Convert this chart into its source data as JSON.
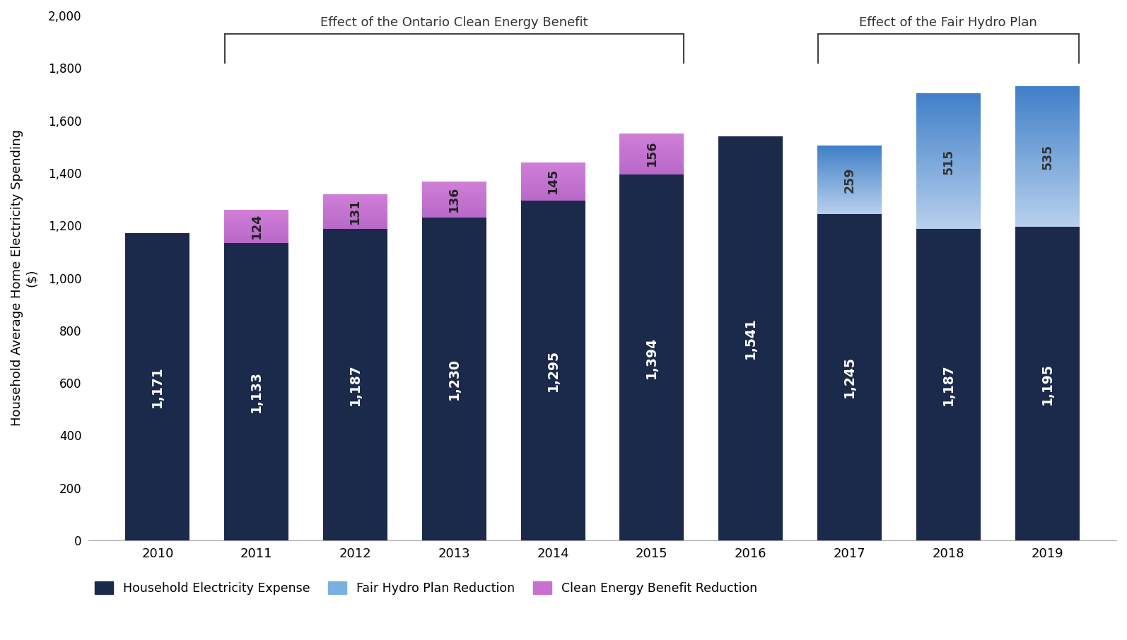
{
  "years": [
    2010,
    2011,
    2012,
    2013,
    2014,
    2015,
    2016,
    2017,
    2018,
    2019
  ],
  "household_expense": [
    1171,
    1133,
    1187,
    1230,
    1295,
    1394,
    1541,
    1245,
    1187,
    1195
  ],
  "clean_energy_reduction": [
    0,
    124,
    131,
    136,
    145,
    156,
    0,
    0,
    0,
    0
  ],
  "fair_hydro_reduction": [
    0,
    0,
    0,
    0,
    0,
    0,
    0,
    259,
    515,
    535
  ],
  "dark_navy": "#1b2a4a",
  "pink_purple_top": "#c970d0",
  "pink_purple_bottom": "#b060b0",
  "light_blue_top": "#4a90d0",
  "light_blue_bottom": "#c8dcf0",
  "ylabel": "Household Average Home Electricity Spending\n($)",
  "legend_expense": "Household Electricity Expense",
  "legend_fair": "Fair Hydro Plan Reduction",
  "legend_clean": "Clean Energy Benefit Reduction",
  "ylim": [
    0,
    2000
  ],
  "yticks": [
    0,
    200,
    400,
    600,
    800,
    1000,
    1200,
    1400,
    1600,
    1800,
    2000
  ],
  "annotation_clean_text": "Effect of the Ontario Clean Energy Benefit",
  "annotation_fair_text": "Effect of the Fair Hydro Plan",
  "bar_width": 0.65
}
